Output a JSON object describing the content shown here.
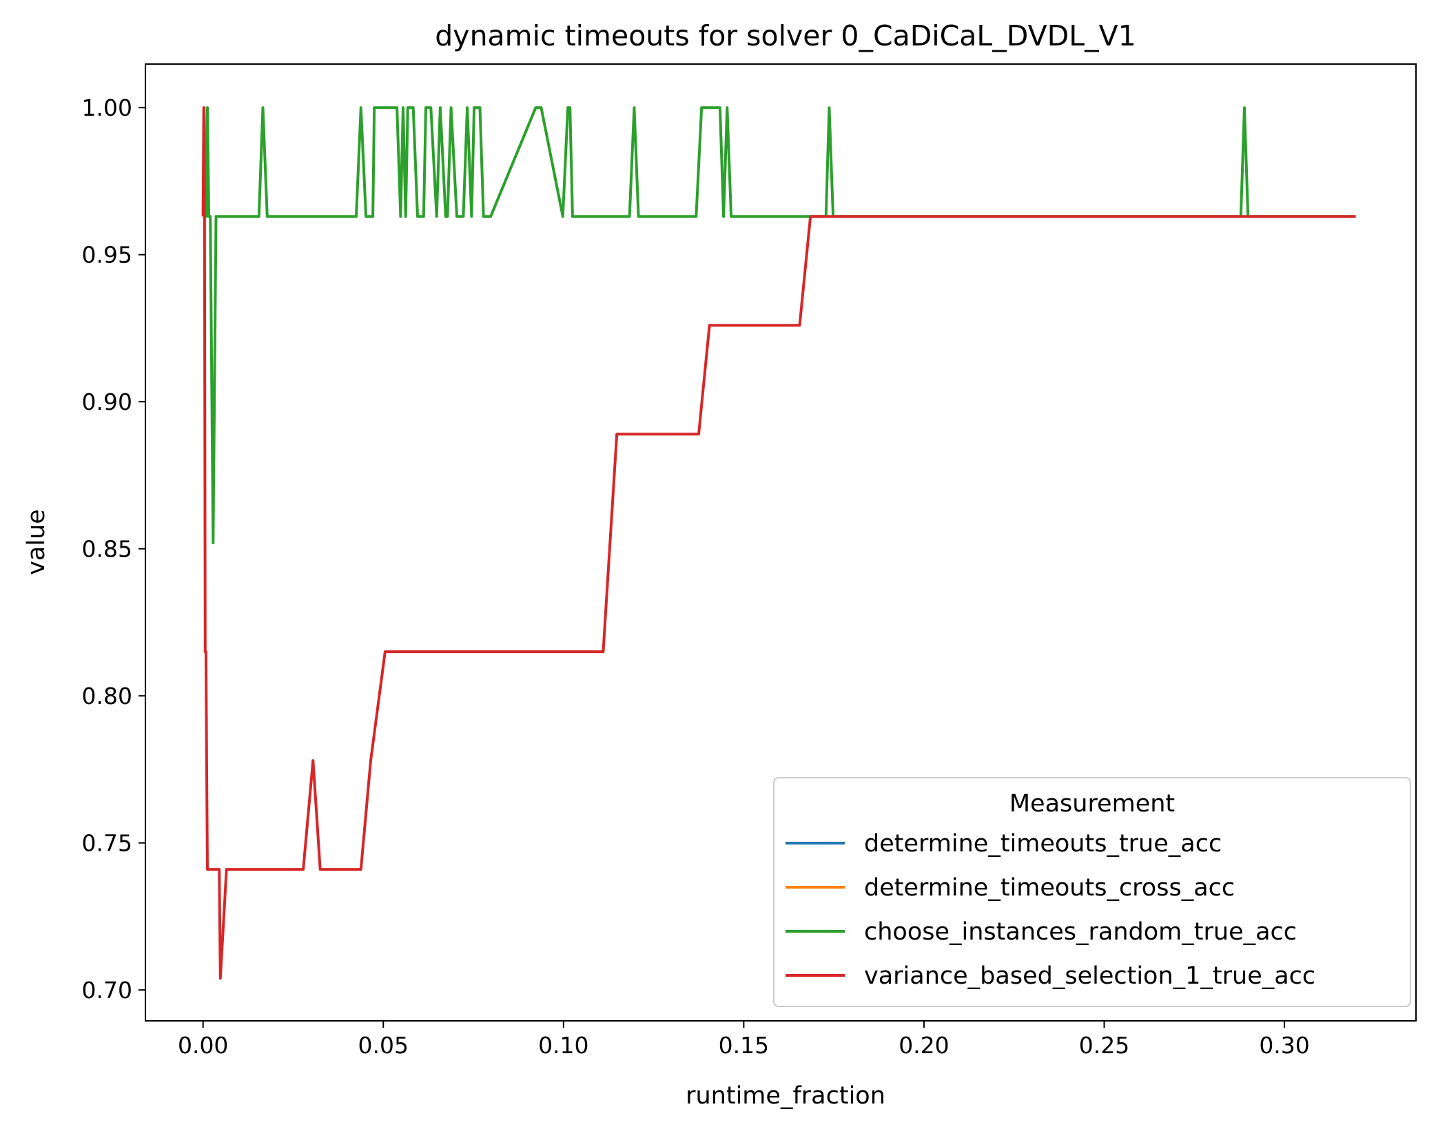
{
  "chart_data": {
    "type": "line",
    "title": "dynamic timeouts for solver 0_CaDiCaL_DVDL_V1",
    "xlabel": "runtime_fraction",
    "ylabel": "value",
    "xlim": [
      -0.016,
      0.3365
    ],
    "ylim": [
      0.6895,
      1.0148
    ],
    "xticks": [
      0.0,
      0.05,
      0.1,
      0.15,
      0.2,
      0.25,
      0.3
    ],
    "xtick_labels": [
      "0.00",
      "0.05",
      "0.10",
      "0.15",
      "0.20",
      "0.25",
      "0.30"
    ],
    "yticks": [
      0.7,
      0.75,
      0.8,
      0.85,
      0.9,
      0.95,
      1.0
    ],
    "ytick_labels": [
      "0.70",
      "0.75",
      "0.80",
      "0.85",
      "0.90",
      "0.95",
      "1.00"
    ],
    "grid": false,
    "legend": {
      "title": "Measurement",
      "position": "lower-right"
    },
    "series": [
      {
        "name": "determine_timeouts_true_acc",
        "color": "#1f77b4",
        "x": [],
        "y": []
      },
      {
        "name": "determine_timeouts_cross_acc",
        "color": "#ff7f0e",
        "x": [],
        "y": []
      },
      {
        "name": "choose_instances_random_true_acc",
        "color": "#2ca02c",
        "x": [
          0.0,
          0.0003,
          0.0006,
          0.0009,
          0.0012,
          0.0016,
          0.002,
          0.0028,
          0.0036,
          0.0042,
          0.0055,
          0.0155,
          0.0166,
          0.0178,
          0.0425,
          0.0438,
          0.0452,
          0.0471,
          0.0475,
          0.0538,
          0.0548,
          0.0555,
          0.0562,
          0.0568,
          0.0575,
          0.0583,
          0.0595,
          0.0612,
          0.0618,
          0.0632,
          0.0648,
          0.0658,
          0.0673,
          0.0678,
          0.0688,
          0.0704,
          0.0722,
          0.0733,
          0.0745,
          0.0752,
          0.0762,
          0.0768,
          0.0778,
          0.0788,
          0.0798,
          0.0923,
          0.0938,
          0.0998,
          0.1012,
          0.1018,
          0.1025,
          0.1038,
          0.1046,
          0.1183,
          0.1196,
          0.1208,
          0.1368,
          0.1383,
          0.1434,
          0.1444,
          0.1454,
          0.1465,
          0.1728,
          0.1737,
          0.1748,
          0.1758,
          0.2879,
          0.2889,
          0.2899,
          0.3192
        ],
        "y": [
          0.963,
          1.0,
          0.963,
          0.963,
          1.0,
          0.963,
          0.963,
          0.852,
          0.963,
          0.963,
          0.963,
          0.963,
          1.0,
          0.963,
          0.963,
          1.0,
          0.963,
          0.963,
          1.0,
          1.0,
          0.963,
          1.0,
          0.963,
          1.0,
          1.0,
          1.0,
          0.963,
          0.963,
          1.0,
          1.0,
          0.963,
          1.0,
          0.963,
          0.963,
          1.0,
          0.963,
          0.963,
          1.0,
          0.963,
          1.0,
          1.0,
          1.0,
          0.963,
          0.963,
          0.963,
          1.0,
          1.0,
          0.963,
          1.0,
          1.0,
          0.963,
          0.963,
          0.963,
          0.963,
          1.0,
          0.963,
          0.963,
          1.0,
          1.0,
          0.963,
          1.0,
          0.963,
          0.963,
          1.0,
          0.963,
          0.963,
          0.963,
          1.0,
          0.963,
          0.963
        ]
      },
      {
        "name": "variance_based_selection_1_true_acc",
        "color": "#d62728",
        "x": [
          0.0,
          0.0002,
          0.0004,
          0.0006,
          0.0008,
          0.001,
          0.0012,
          0.0015,
          0.0045,
          0.0065,
          0.0278,
          0.0305,
          0.0325,
          0.0438,
          0.0465,
          0.0505,
          0.111,
          0.1148,
          0.1375,
          0.1405,
          0.1655,
          0.1685,
          0.3198
        ],
        "y": [
          0.963,
          1.0,
          0.963,
          0.815,
          0.815,
          0.778,
          0.741,
          0.741,
          0.741,
          0.741,
          0.741,
          0.778,
          0.741,
          0.741,
          0.778,
          0.815,
          0.815,
          0.889,
          0.889,
          0.926,
          0.926,
          0.963,
          0.963
        ],
        "dip": {
          "x": 0.0048,
          "y": 0.704
        }
      }
    ]
  }
}
